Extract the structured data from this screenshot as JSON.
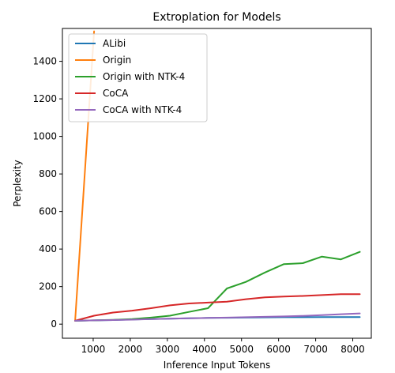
{
  "chart_data": {
    "type": "line",
    "title": "Extroplation for Models",
    "xlabel": "Inference Input Tokens",
    "ylabel": "Perplexity",
    "xlim": [
      170,
      8500
    ],
    "ylim": [
      -75,
      1575
    ],
    "xticks": [
      1000,
      2000,
      3000,
      4000,
      5000,
      6000,
      7000,
      8000
    ],
    "yticks": [
      0,
      200,
      400,
      600,
      800,
      1000,
      1200,
      1400
    ],
    "legend_position": "top-left",
    "grid": false,
    "series": [
      {
        "name": "ALibi",
        "color": "#1f77b4",
        "x": [
          512,
          1024,
          1536,
          2048,
          2560,
          3072,
          3584,
          4096,
          4608,
          5120,
          5632,
          6144,
          6656,
          7168,
          7680,
          8192
        ],
        "y": [
          18,
          20,
          22,
          25,
          27,
          29,
          31,
          33,
          34,
          35,
          36,
          37,
          37,
          38,
          38,
          38
        ]
      },
      {
        "name": "Origin",
        "color": "#ff7f0e",
        "x": [
          512,
          1024
        ],
        "y": [
          18,
          1560
        ]
      },
      {
        "name": "Origin with NTK-4",
        "color": "#2ca02c",
        "x": [
          512,
          1024,
          1536,
          2048,
          2560,
          3072,
          3584,
          4096,
          4608,
          5120,
          5632,
          6144,
          6656,
          7168,
          7680,
          8192
        ],
        "y": [
          18,
          20,
          23,
          27,
          35,
          45,
          65,
          85,
          190,
          225,
          275,
          320,
          325,
          360,
          345,
          385
        ]
      },
      {
        "name": "CoCA",
        "color": "#d62728",
        "x": [
          512,
          1024,
          1536,
          2048,
          2560,
          3072,
          3584,
          4096,
          4608,
          5120,
          5632,
          6144,
          6656,
          7168,
          7680,
          8192
        ],
        "y": [
          18,
          45,
          62,
          72,
          85,
          100,
          110,
          115,
          120,
          133,
          143,
          147,
          150,
          155,
          160,
          160
        ]
      },
      {
        "name": "CoCA with NTK-4",
        "color": "#9467bd",
        "x": [
          512,
          1024,
          1536,
          2048,
          2560,
          3072,
          3584,
          4096,
          4608,
          5120,
          5632,
          6144,
          6656,
          7168,
          7680,
          8192
        ],
        "y": [
          18,
          20,
          22,
          24,
          27,
          29,
          31,
          33,
          35,
          37,
          39,
          41,
          44,
          48,
          53,
          57
        ]
      }
    ]
  }
}
